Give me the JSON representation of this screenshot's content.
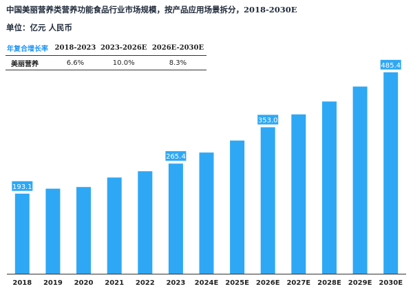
{
  "title": "中国美丽营养类营养功能食品行业市场规模，按产品应用场景拆分，2018-2030E",
  "unit": "单位：亿元 人民币",
  "cagr_table": {
    "header": [
      "年复合增长率",
      "2018-2023",
      "2023-2026E",
      "2026E-2030E"
    ],
    "rows": [
      {
        "label": "美丽营养",
        "values": [
          "6.6%",
          "10.0%",
          "8.3%"
        ]
      }
    ]
  },
  "colors": {
    "bar": "#2ea8f5",
    "label_bg": "#2ea8f5",
    "label_text": "#ffffff",
    "axis": "#333333"
  },
  "chart_data": {
    "type": "bar",
    "categories": [
      "2018",
      "2019",
      "2020",
      "2021",
      "2022",
      "2023",
      "2024E",
      "2025E",
      "2026E",
      "2027E",
      "2028E",
      "2029E",
      "2030E"
    ],
    "values": [
      193.1,
      205,
      209,
      232,
      247,
      265.4,
      292,
      321,
      353.0,
      384,
      415,
      451,
      485.4
    ],
    "data_labels": [
      {
        "index": 0,
        "text": "193.1"
      },
      {
        "index": 5,
        "text": "265.4"
      },
      {
        "index": 8,
        "text": "353.0"
      },
      {
        "index": 12,
        "text": "485.4"
      }
    ],
    "ylim": [
      0,
      520
    ],
    "xlabel": "",
    "ylabel": ""
  }
}
